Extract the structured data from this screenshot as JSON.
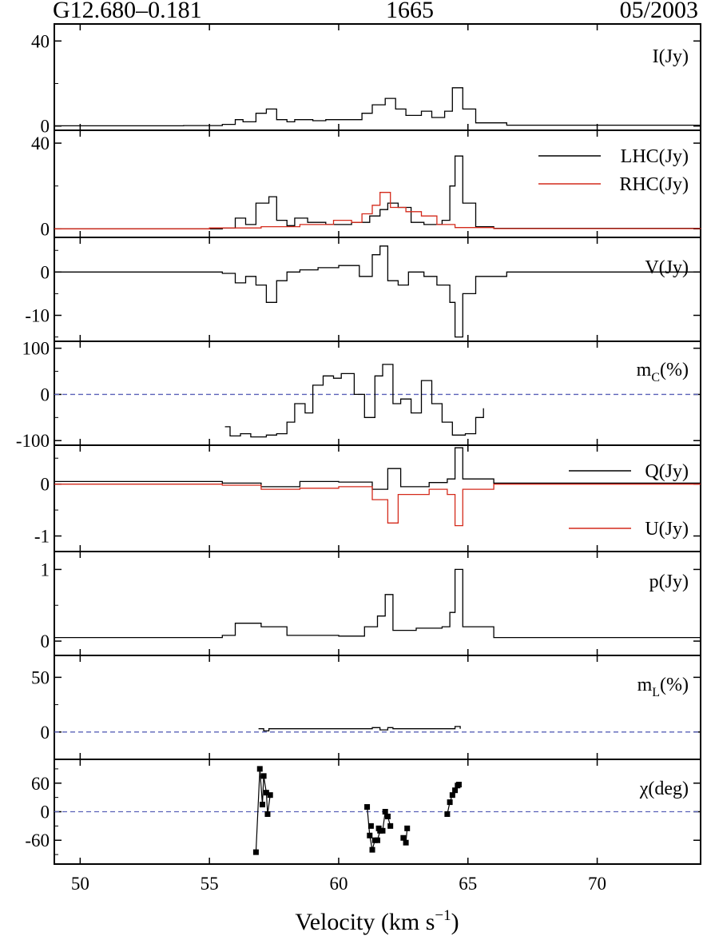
{
  "header": {
    "source": "G12.680–0.181",
    "frequency": "1665",
    "epoch": "05/2003"
  },
  "x_axis": {
    "label": "Velocity (km s",
    "label_sup": "−1",
    "label_close": ")",
    "range": [
      49,
      74
    ],
    "ticks": [
      50,
      55,
      60,
      65,
      70
    ]
  },
  "chart_data": [
    {
      "type": "line",
      "panel": "I",
      "ylim": [
        -2,
        48
      ],
      "yticks": [
        0,
        40
      ],
      "ytick_labels": [
        "0",
        "40"
      ],
      "labels": [
        "I(Jy)"
      ],
      "series": [
        {
          "name": "I(Jy)",
          "color": "#000000",
          "points": [
            [
              49,
              0.1
            ],
            [
              54,
              0.2
            ],
            [
              55.5,
              0.8
            ],
            [
              56,
              3
            ],
            [
              56.3,
              2
            ],
            [
              56.8,
              6
            ],
            [
              57.2,
              8
            ],
            [
              57.6,
              3
            ],
            [
              58.0,
              2
            ],
            [
              58.3,
              3
            ],
            [
              59.0,
              2.5
            ],
            [
              59.5,
              3
            ],
            [
              60.2,
              3
            ],
            [
              60.9,
              6
            ],
            [
              61.3,
              10
            ],
            [
              61.8,
              13
            ],
            [
              62.2,
              8
            ],
            [
              62.6,
              5
            ],
            [
              63.2,
              7
            ],
            [
              63.6,
              4
            ],
            [
              64.1,
              7
            ],
            [
              64.4,
              18
            ],
            [
              64.8,
              8
            ],
            [
              65.3,
              1.5
            ],
            [
              66.5,
              0.4
            ],
            [
              74,
              0.1
            ]
          ]
        }
      ]
    },
    {
      "type": "line",
      "panel": "LHC_RHC",
      "ylim": [
        -4,
        46
      ],
      "yticks": [
        0,
        40
      ],
      "ytick_labels": [
        "0",
        "40"
      ],
      "labels": [],
      "series": [
        {
          "name": "LHC(Jy)",
          "color": "#000000",
          "points": [
            [
              49,
              0
            ],
            [
              55.5,
              0.4
            ],
            [
              56,
              5
            ],
            [
              56.4,
              2
            ],
            [
              56.8,
              12
            ],
            [
              57.3,
              15
            ],
            [
              57.6,
              4
            ],
            [
              58.0,
              1.5
            ],
            [
              58.3,
              5
            ],
            [
              58.8,
              3
            ],
            [
              59.5,
              2
            ],
            [
              60.5,
              3
            ],
            [
              61.2,
              6
            ],
            [
              61.6,
              9
            ],
            [
              61.9,
              12
            ],
            [
              62.3,
              10
            ],
            [
              62.8,
              3
            ],
            [
              63.3,
              2
            ],
            [
              64.0,
              4
            ],
            [
              64.3,
              20
            ],
            [
              64.5,
              34
            ],
            [
              64.8,
              12
            ],
            [
              65.3,
              1
            ],
            [
              66,
              0.2
            ],
            [
              74,
              0
            ]
          ]
        },
        {
          "name": "RHC(Jy)",
          "color": "#d42a1b",
          "points": [
            [
              49,
              0
            ],
            [
              55,
              0.4
            ],
            [
              57,
              1
            ],
            [
              58.5,
              2
            ],
            [
              59.8,
              4
            ],
            [
              60.5,
              3
            ],
            [
              60.9,
              7
            ],
            [
              61.3,
              11
            ],
            [
              61.6,
              17
            ],
            [
              62.0,
              10
            ],
            [
              62.6,
              8
            ],
            [
              63.2,
              6
            ],
            [
              63.8,
              2
            ],
            [
              64.5,
              0.6
            ],
            [
              66,
              0.1
            ],
            [
              74,
              0
            ]
          ]
        }
      ]
    },
    {
      "type": "line",
      "panel": "V",
      "ylim": [
        -16,
        8
      ],
      "yticks": [
        0,
        -10
      ],
      "ytick_labels": [
        "0",
        "-10"
      ],
      "labels": [
        "V(Jy)"
      ],
      "series": [
        {
          "name": "V(Jy)",
          "color": "#000000",
          "points": [
            [
              49,
              0
            ],
            [
              55.5,
              -0.3
            ],
            [
              56,
              -2.5
            ],
            [
              56.4,
              -1
            ],
            [
              56.8,
              -3
            ],
            [
              57.2,
              -7
            ],
            [
              57.6,
              -2
            ],
            [
              58.0,
              0
            ],
            [
              58.5,
              0.5
            ],
            [
              59.2,
              1
            ],
            [
              60.0,
              1.5
            ],
            [
              60.8,
              -1
            ],
            [
              61.3,
              4
            ],
            [
              61.6,
              6
            ],
            [
              61.9,
              -2
            ],
            [
              62.3,
              -3
            ],
            [
              62.7,
              0
            ],
            [
              63.3,
              -1
            ],
            [
              63.8,
              -3
            ],
            [
              64.3,
              -7
            ],
            [
              64.5,
              -15
            ],
            [
              64.8,
              -5
            ],
            [
              65.3,
              -1
            ],
            [
              66.5,
              0
            ],
            [
              74,
              0
            ]
          ]
        }
      ]
    },
    {
      "type": "line",
      "panel": "mC",
      "ylim": [
        -110,
        115
      ],
      "yticks": [
        100,
        0,
        -100
      ],
      "ytick_labels": [
        "100",
        "0",
        "-100"
      ],
      "zero_line": true,
      "labels": [
        "m",
        "C",
        "(%)"
      ],
      "series": [
        {
          "name": "m_C(%)",
          "color": "#000000",
          "points": [
            [
              55.6,
              -70
            ],
            [
              55.8,
              -90
            ],
            [
              56.2,
              -85
            ],
            [
              56.6,
              -92
            ],
            [
              57.2,
              -88
            ],
            [
              57.6,
              -85
            ],
            [
              58.0,
              -60
            ],
            [
              58.3,
              -20
            ],
            [
              58.7,
              -40
            ],
            [
              59.0,
              20
            ],
            [
              59.4,
              40
            ],
            [
              59.8,
              35
            ],
            [
              60.1,
              45
            ],
            [
              60.6,
              0
            ],
            [
              61.0,
              -50
            ],
            [
              61.4,
              40
            ],
            [
              61.7,
              65
            ],
            [
              62.1,
              -20
            ],
            [
              62.4,
              -10
            ],
            [
              62.8,
              -40
            ],
            [
              63.2,
              30
            ],
            [
              63.6,
              -20
            ],
            [
              64.0,
              -60
            ],
            [
              64.4,
              -88
            ],
            [
              64.9,
              -85
            ],
            [
              65.3,
              -50
            ],
            [
              65.6,
              -30
            ]
          ]
        }
      ]
    },
    {
      "type": "line",
      "panel": "QU",
      "ylim": [
        -1.3,
        0.75
      ],
      "yticks": [
        0,
        -1
      ],
      "ytick_labels": [
        "0",
        "-1"
      ],
      "labels": [],
      "series": [
        {
          "name": "Q(Jy)",
          "color": "#000000",
          "points": [
            [
              49,
              0.05
            ],
            [
              55.5,
              0.02
            ],
            [
              57,
              -0.05
            ],
            [
              58.5,
              0.05
            ],
            [
              60,
              0.04
            ],
            [
              61.3,
              -0.1
            ],
            [
              61.9,
              0.3
            ],
            [
              62.4,
              -0.05
            ],
            [
              63.5,
              0.03
            ],
            [
              64.2,
              0.1
            ],
            [
              64.5,
              0.7
            ],
            [
              64.8,
              0.1
            ],
            [
              66,
              0.02
            ],
            [
              74,
              0
            ]
          ]
        },
        {
          "name": "U(Jy)",
          "color": "#d42a1b",
          "points": [
            [
              49,
              0
            ],
            [
              55.5,
              -0.02
            ],
            [
              57,
              -0.1
            ],
            [
              58.5,
              -0.08
            ],
            [
              60,
              -0.05
            ],
            [
              61.3,
              -0.3
            ],
            [
              61.9,
              -0.75
            ],
            [
              62.3,
              -0.2
            ],
            [
              63.5,
              -0.1
            ],
            [
              64.2,
              -0.2
            ],
            [
              64.5,
              -0.8
            ],
            [
              64.8,
              -0.1
            ],
            [
              66,
              0
            ],
            [
              74,
              0
            ]
          ]
        }
      ]
    },
    {
      "type": "line",
      "panel": "p",
      "ylim": [
        -0.2,
        1.25
      ],
      "yticks": [
        1,
        0
      ],
      "ytick_labels": [
        "1",
        "0"
      ],
      "labels": [
        "p(Jy)"
      ],
      "series": [
        {
          "name": "p(Jy)",
          "color": "#000000",
          "points": [
            [
              49,
              0.05
            ],
            [
              55.5,
              0.08
            ],
            [
              56.0,
              0.25
            ],
            [
              57.0,
              0.2
            ],
            [
              58.0,
              0.08
            ],
            [
              60.0,
              0.07
            ],
            [
              61.0,
              0.2
            ],
            [
              61.5,
              0.35
            ],
            [
              61.8,
              0.65
            ],
            [
              62.1,
              0.15
            ],
            [
              63.0,
              0.18
            ],
            [
              64.0,
              0.2
            ],
            [
              64.3,
              0.4
            ],
            [
              64.5,
              1.0
            ],
            [
              64.8,
              0.2
            ],
            [
              66,
              0.05
            ],
            [
              74,
              0.05
            ]
          ]
        }
      ]
    },
    {
      "type": "line",
      "panel": "mL",
      "ylim": [
        -25,
        70
      ],
      "yticks": [
        50,
        0
      ],
      "ytick_labels": [
        "50",
        "0"
      ],
      "zero_line": true,
      "labels": [
        "m",
        "L",
        "(%)"
      ],
      "series": [
        {
          "name": "m_L(%)",
          "color": "#000000",
          "points": [
            [
              56.9,
              3
            ],
            [
              57.1,
              1
            ],
            [
              57.3,
              3
            ],
            [
              61.0,
              3
            ],
            [
              61.3,
              4
            ],
            [
              61.6,
              2
            ],
            [
              61.9,
              4
            ],
            [
              62.1,
              3
            ],
            [
              64.2,
              3
            ],
            [
              64.5,
              5
            ],
            [
              64.7,
              3
            ]
          ]
        }
      ]
    },
    {
      "type": "scatter",
      "panel": "chi",
      "ylim": [
        -110,
        110
      ],
      "yticks": [
        60,
        0,
        -60
      ],
      "ytick_labels": [
        "60",
        "0",
        "-60"
      ],
      "zero_line": true,
      "labels": [
        "χ(deg)"
      ],
      "series": [
        {
          "name": "χ(deg)",
          "color": "#000000",
          "segments": [
            [
              [
                56.8,
                -85
              ],
              [
                56.95,
                90
              ],
              [
                57.05,
                15
              ],
              [
                57.1,
                75
              ],
              [
                57.2,
                40
              ],
              [
                57.25,
                -5
              ],
              [
                57.35,
                35
              ]
            ],
            [
              [
                61.1,
                10
              ],
              [
                61.2,
                -50
              ],
              [
                61.3,
                -80
              ],
              [
                61.4,
                -60
              ],
              [
                61.5,
                -60
              ],
              [
                61.6,
                -40
              ],
              [
                61.7,
                -40
              ],
              [
                61.8,
                0
              ],
              [
                61.9,
                -10
              ],
              [
                62.0,
                -30
              ]
            ],
            [
              [
                62.5,
                -55
              ],
              [
                62.6,
                -65
              ],
              [
                62.65,
                -35
              ]
            ],
            [
              [
                64.2,
                -5
              ],
              [
                64.3,
                20
              ],
              [
                64.4,
                35
              ],
              [
                64.5,
                45
              ],
              [
                64.6,
                55
              ],
              [
                64.65,
                57
              ]
            ]
          ],
          "isolated": [
            [
              61.25,
              -30
            ],
            [
              61.55,
              -35
            ]
          ]
        }
      ]
    }
  ]
}
